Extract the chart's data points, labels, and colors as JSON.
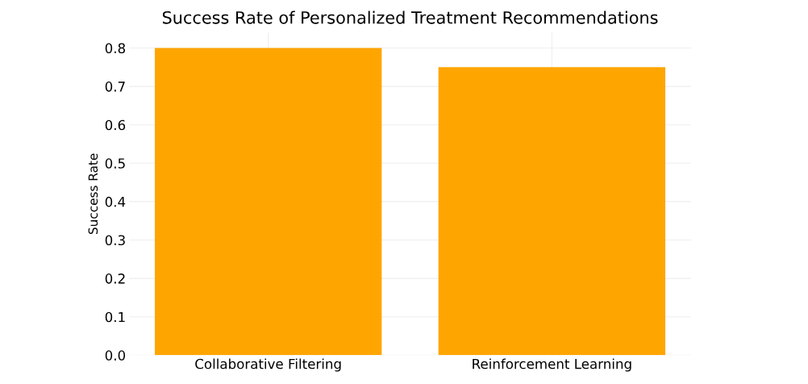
{
  "chart_data": {
    "type": "bar",
    "title": "Success Rate of Personalized Treatment Recommendations",
    "ylabel": "Success Rate",
    "categories": [
      "Collaborative Filtering",
      "Reinforcement Learning"
    ],
    "values": [
      0.8,
      0.75
    ],
    "color": "#ffa500",
    "ylim": [
      0,
      0.84
    ],
    "yticks": [
      {
        "value": 0,
        "label": "0.0"
      },
      0.1,
      0.2,
      0.3,
      0.4,
      0.5,
      0.6,
      0.7,
      0.8
    ],
    "grid": true
  }
}
